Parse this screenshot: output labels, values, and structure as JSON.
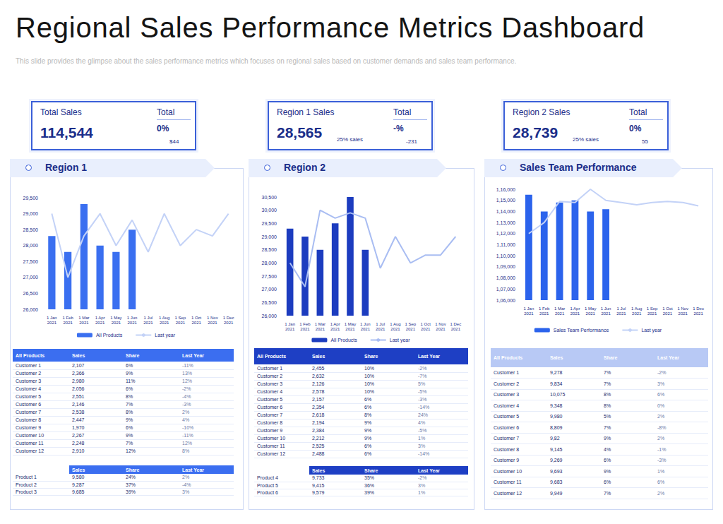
{
  "title": "Regional Sales Performance Metrics Dashboard",
  "subtitle": "This slide provides the glimpse about the sales performance metrics which focuses on regional sales based on customer demands and sales team performance.",
  "kpis": [
    {
      "label": "Total Sales",
      "total_label": "Total",
      "value": "114,544",
      "change": "0%",
      "note": "$44"
    },
    {
      "label": "Region 1 Sales",
      "total_label": "Total",
      "value": "28,565",
      "share": "25% sales",
      "change": "-%",
      "note": "-231"
    },
    {
      "label": "Region 2 Sales",
      "total_label": "Total",
      "value": "28,739",
      "share": "25% sales",
      "change": "0%",
      "note": "55"
    }
  ],
  "chart_data": [
    {
      "type": "bar",
      "title": "Region 1",
      "categories": [
        "1 Jan 2021",
        "1 Feb 2021",
        "1 Mar 2021",
        "1 Apr 2021",
        "1 May 2021",
        "1 Jun 2021",
        "1 Jul 2021",
        "1 Aug 2021",
        "1 Sep 2021",
        "1 Oct 2021",
        "1 Nov 2021",
        "1 Dec 2021"
      ],
      "series": [
        {
          "name": "All Products",
          "type": "bar",
          "color": "#3a6ff0",
          "values": [
            28300,
            27800,
            29300,
            28000,
            27800,
            28500,
            null,
            null,
            null,
            null,
            null,
            null
          ]
        },
        {
          "name": "Last year",
          "type": "line",
          "color": "#c3d2f7",
          "marker": "none",
          "values": [
            29000,
            27000,
            28300,
            29000,
            28000,
            28800,
            27800,
            29000,
            28000,
            28500,
            28300,
            29000
          ]
        }
      ],
      "ylim": [
        26000,
        29500
      ],
      "yticks": [
        {
          "value": 26000,
          "label": "26,000"
        },
        {
          "value": 26500,
          "label": "26,500"
        },
        {
          "value": 27000,
          "label": "27,000"
        },
        {
          "value": 27500,
          "label": "27,500"
        },
        {
          "value": 28000,
          "label": "28,000"
        },
        {
          "value": 28500,
          "label": "28,500"
        },
        {
          "value": 29000,
          "label": "29,000"
        },
        {
          "value": 29500,
          "label": "29,500"
        }
      ],
      "grid": false,
      "legend": "bottom"
    },
    {
      "type": "bar",
      "title": "Region 2",
      "categories": [
        "1 Jan 2021",
        "1 Feb 2021",
        "1 Mar 2021",
        "1 Apr 2021",
        "1 May 2021",
        "1 Jun 2021",
        "1 Jul 2021",
        "1 Aug 2021",
        "1 Sep 2021",
        "1 Oct 2021",
        "1 Nov 2021",
        "1 Dec 2021"
      ],
      "series": [
        {
          "name": "All Products",
          "type": "bar",
          "color": "#1c3cbf",
          "values": [
            29300,
            29000,
            28500,
            29500,
            30500,
            28500,
            null,
            null,
            null,
            null,
            null,
            null
          ]
        },
        {
          "name": "Last year",
          "type": "line",
          "color": "#a9bdf2",
          "marker": "none",
          "values": [
            28000,
            27100,
            30000,
            29700,
            29900,
            29700,
            27800,
            29000,
            28000,
            28300,
            28300,
            29000
          ]
        }
      ],
      "ylim": [
        26000,
        30500
      ],
      "yticks": [
        {
          "value": 26000,
          "label": "26,000"
        },
        {
          "value": 26500,
          "label": "26,500"
        },
        {
          "value": 27000,
          "label": "27,000"
        },
        {
          "value": 27500,
          "label": "27,500"
        },
        {
          "value": 28000,
          "label": "28,000"
        },
        {
          "value": 28500,
          "label": "28,500"
        },
        {
          "value": 29000,
          "label": "29,000"
        },
        {
          "value": 29500,
          "label": "29,500"
        },
        {
          "value": 30000,
          "label": "30,000"
        },
        {
          "value": 30500,
          "label": "30,500"
        }
      ],
      "grid": false,
      "legend": "bottom"
    },
    {
      "type": "bar",
      "title": "Sales Team Performance",
      "categories": [
        "1 Jan 2021",
        "1 Feb 2021",
        "1 Mar 2021",
        "1 Apr 2021",
        "1 May 2021",
        "1 Jun 2021",
        "1 Jul 2021",
        "1 Aug 2021",
        "1 Sep 2021",
        "1 Oct 2021",
        "1 Nov 2021",
        "1 Dec 2021"
      ],
      "series": [
        {
          "name": "Sales Team Performance",
          "type": "bar",
          "color": "#2b63ec",
          "values": [
            115500,
            114000,
            114800,
            115000,
            114000,
            114200,
            null,
            null,
            null,
            null,
            null,
            null
          ]
        },
        {
          "name": "Last year",
          "type": "line",
          "color": "#c3d2f7",
          "marker": "none",
          "values": [
            112000,
            113000,
            114900,
            114800,
            116000,
            115000,
            114800,
            114600,
            114800,
            114900,
            114800,
            114500
          ]
        }
      ],
      "ylim": [
        106000,
        116000
      ],
      "yticks": [
        {
          "value": 106000,
          "label": "1,06,000"
        },
        {
          "value": 107000,
          "label": "1,07,000"
        },
        {
          "value": 108000,
          "label": "1,08,000"
        },
        {
          "value": 109000,
          "label": "1,09,000"
        },
        {
          "value": 110000,
          "label": "1,10,000"
        },
        {
          "value": 111000,
          "label": "1,11,000"
        },
        {
          "value": 112000,
          "label": "1,12,000"
        },
        {
          "value": 113000,
          "label": "1,13,000"
        },
        {
          "value": 114000,
          "label": "1,14,000"
        },
        {
          "value": 115000,
          "label": "1,15,000"
        },
        {
          "value": 116000,
          "label": "1,16,000"
        }
      ],
      "grid": false,
      "legend": "bottom"
    }
  ],
  "tables": [
    {
      "header": [
        "All Products",
        "Sales",
        "Share",
        "Last Year"
      ],
      "rows": [
        [
          "Customer 1",
          "2,107",
          "6%",
          "-11%"
        ],
        [
          "Customer 2",
          "2,366",
          "9%",
          "13%"
        ],
        [
          "Customer 3",
          "2,980",
          "11%",
          "12%"
        ],
        [
          "Customer 4",
          "2,056",
          "6%",
          "-2%"
        ],
        [
          "Customer 5",
          "2,551",
          "8%",
          "-4%"
        ],
        [
          "Customer 6",
          "2,146",
          "7%",
          "-3%"
        ],
        [
          "Customer 7",
          "2,538",
          "8%",
          "2%"
        ],
        [
          "Customer 8",
          "2,447",
          "9%",
          "4%"
        ],
        [
          "Customer 9",
          "1,970",
          "6%",
          "-10%"
        ],
        [
          "Customer 10",
          "2,267",
          "9%",
          "-11%"
        ],
        [
          "Customer 11",
          "2,248",
          "7%",
          "12%"
        ],
        [
          "Customer 12",
          "2,910",
          "12%",
          "8%"
        ]
      ],
      "product_header": [
        "Sales",
        "Share",
        "Last Year"
      ],
      "product_rows": [
        [
          "Product 1",
          "9,580",
          "24%",
          "2%"
        ],
        [
          "Product 2",
          "9,287",
          "37%",
          "-4%"
        ],
        [
          "Product 3",
          "9,685",
          "39%",
          "3%"
        ]
      ]
    },
    {
      "header": [
        "All Products",
        "Sales",
        "Share",
        "Last Year"
      ],
      "rows": [
        [
          "Customer 1",
          "2,455",
          "10%",
          "-2%"
        ],
        [
          "Customer 2",
          "2,632",
          "10%",
          "-7%"
        ],
        [
          "Customer 3",
          "2,126",
          "10%",
          "5%"
        ],
        [
          "Customer 4",
          "2,578",
          "10%",
          "-5%"
        ],
        [
          "Customer 5",
          "2,157",
          "6%",
          "-3%"
        ],
        [
          "Customer 6",
          "2,354",
          "6%",
          "-14%"
        ],
        [
          "Customer 7",
          "2,618",
          "8%",
          "24%"
        ],
        [
          "Customer 8",
          "2,194",
          "9%",
          "4%"
        ],
        [
          "Customer 9",
          "2,384",
          "9%",
          "-5%"
        ],
        [
          "Customer 10",
          "2,212",
          "9%",
          "1%"
        ],
        [
          "Customer 11",
          "2,525",
          "6%",
          "3%"
        ],
        [
          "Customer 12",
          "2,488",
          "6%",
          "-14%"
        ]
      ],
      "product_header": [
        "Sales",
        "Share",
        "Last Year"
      ],
      "product_rows": [
        [
          "Product 4",
          "9,733",
          "35%",
          "-2%"
        ],
        [
          "Product 5",
          "9,415",
          "36%",
          "3%"
        ],
        [
          "Product 6",
          "9,579",
          "39%",
          "1%"
        ]
      ]
    },
    {
      "header": [
        "All Products",
        "Sales",
        "Share",
        "Last Year"
      ],
      "rows": [
        [
          "Customer 1",
          "9,278",
          "7%",
          "-2%"
        ],
        [
          "Customer 2",
          "9,834",
          "7%",
          "3%"
        ],
        [
          "Customer 3",
          "10,075",
          "8%",
          "6%"
        ],
        [
          "Customer 4",
          "9,348",
          "8%",
          "0%"
        ],
        [
          "Customer 5",
          "9,980",
          "5%",
          "2%"
        ],
        [
          "Customer 6",
          "8,809",
          "7%",
          "-8%"
        ],
        [
          "Customer 7",
          "9,82",
          "9%",
          "2%"
        ],
        [
          "Customer 8",
          "9,145",
          "4%",
          "-1%"
        ],
        [
          "Customer 9",
          "9,269",
          "6%",
          "-3%"
        ],
        [
          "Customer 10",
          "9,693",
          "9%",
          "1%"
        ],
        [
          "Customer 11",
          "9,683",
          "6%",
          "6%"
        ],
        [
          "Customer 12",
          "9,949",
          "7%",
          "2%"
        ]
      ]
    }
  ]
}
